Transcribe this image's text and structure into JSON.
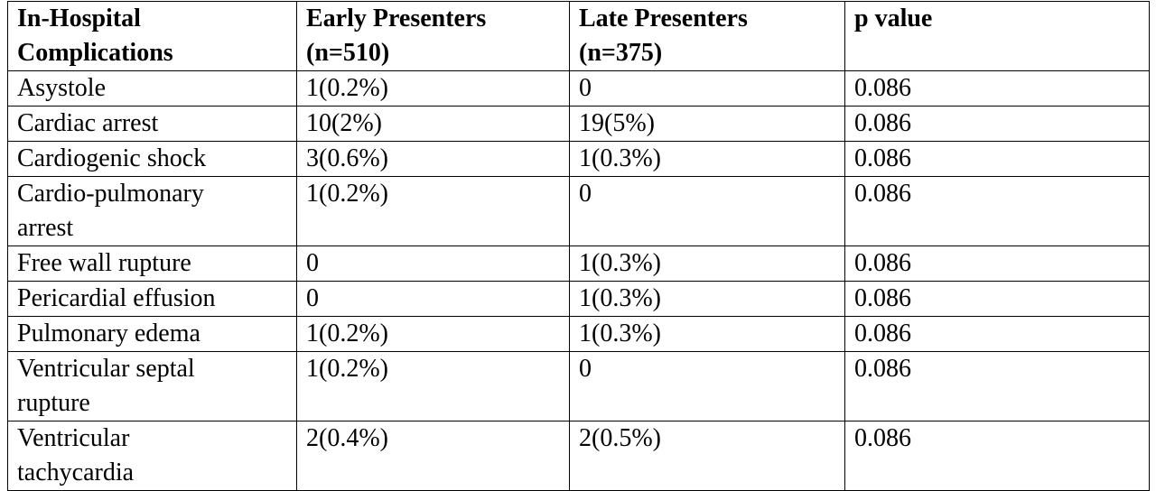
{
  "table": {
    "header": [
      "In-Hospital\nComplications",
      "Early Presenters\n(n=510)",
      "Late Presenters\n(n=375)",
      "p value"
    ],
    "rows": [
      [
        "Asystole",
        "1(0.2%)",
        "0",
        "0.086"
      ],
      [
        "Cardiac arrest",
        "10(2%)",
        "19(5%)",
        "0.086"
      ],
      [
        "Cardiogenic shock",
        "3(0.6%)",
        "1(0.3%)",
        "0.086"
      ],
      [
        "Cardio-pulmonary\narrest",
        "1(0.2%)",
        "0",
        "0.086"
      ],
      [
        "Free wall rupture",
        "0",
        "1(0.3%)",
        "0.086"
      ],
      [
        "Pericardial effusion",
        "0",
        "1(0.3%)",
        "0.086"
      ],
      [
        "Pulmonary edema",
        "1(0.2%)",
        "1(0.3%)",
        "0.086"
      ],
      [
        "Ventricular septal\nrupture",
        "1(0.2%)",
        "0",
        "0.086"
      ],
      [
        "Ventricular\ntachycardia",
        "2(0.4%)",
        "2(0.5%)",
        "0.086"
      ]
    ]
  }
}
